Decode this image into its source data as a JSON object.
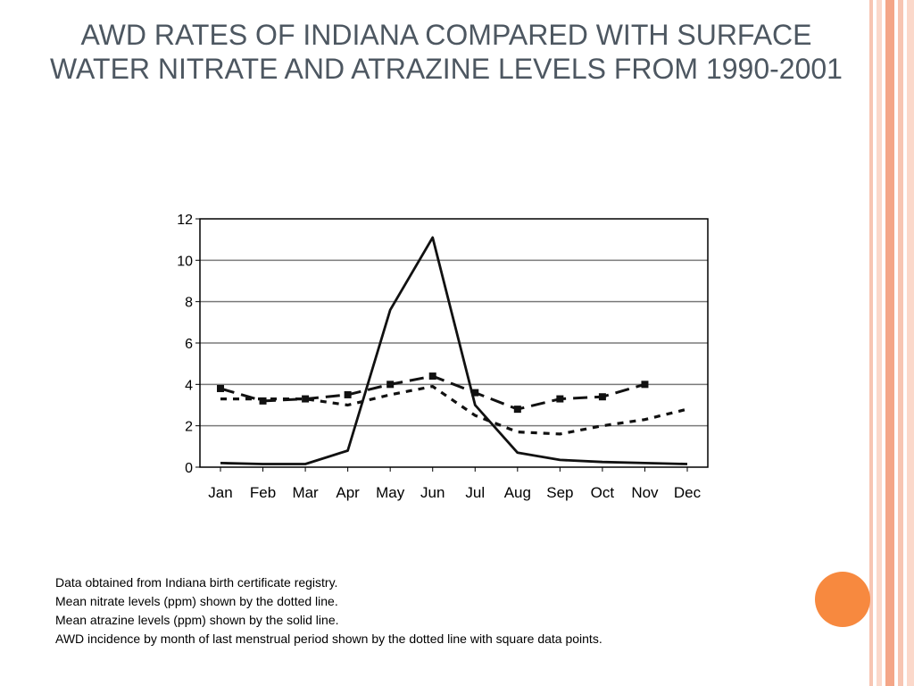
{
  "slide": {
    "title": "AWD RATES OF INDIANA COMPARED WITH SURFACE WATER NITRATE AND ATRAZINE LEVELS FROM 1990-2001",
    "notes": [
      "Data obtained from Indiana birth certificate registry.",
      "Mean nitrate levels (ppm) shown by the dotted line.",
      "Mean atrazine levels (ppm) shown by the solid line.",
      "AWD incidence by month of last menstrual period shown by the dotted line with square data points."
    ]
  },
  "theme": {
    "title_color": "#4d5761",
    "stripe_colors": [
      "#f7c5b2",
      "#fbd8ca",
      "#f4a688"
    ],
    "accent_circle": "#f7893f"
  },
  "chart_data": {
    "type": "line",
    "categories": [
      "Jan",
      "Feb",
      "Mar",
      "Apr",
      "May",
      "Jun",
      "Jul",
      "Aug",
      "Sep",
      "Oct",
      "Nov",
      "Dec"
    ],
    "ylim": [
      0,
      12
    ],
    "yticks": [
      "0",
      "2",
      "4",
      "6",
      "8",
      "10",
      "12"
    ],
    "grid": true,
    "series": [
      {
        "key": "atrazine",
        "style": "solid",
        "values": [
          0.2,
          0.15,
          0.15,
          0.8,
          7.6,
          11.1,
          3.0,
          0.7,
          0.35,
          0.25,
          0.2,
          0.15
        ]
      },
      {
        "key": "nitrate",
        "style": "dotted",
        "values": [
          3.3,
          3.3,
          3.3,
          3.0,
          3.5,
          3.9,
          2.5,
          1.7,
          1.6,
          2.0,
          2.3,
          2.8
        ]
      },
      {
        "key": "awd",
        "style": "dashed-markers",
        "values": [
          3.8,
          3.2,
          3.3,
          3.5,
          4.0,
          4.4,
          3.6,
          2.8,
          3.3,
          3.4,
          4.0,
          null
        ]
      }
    ]
  }
}
